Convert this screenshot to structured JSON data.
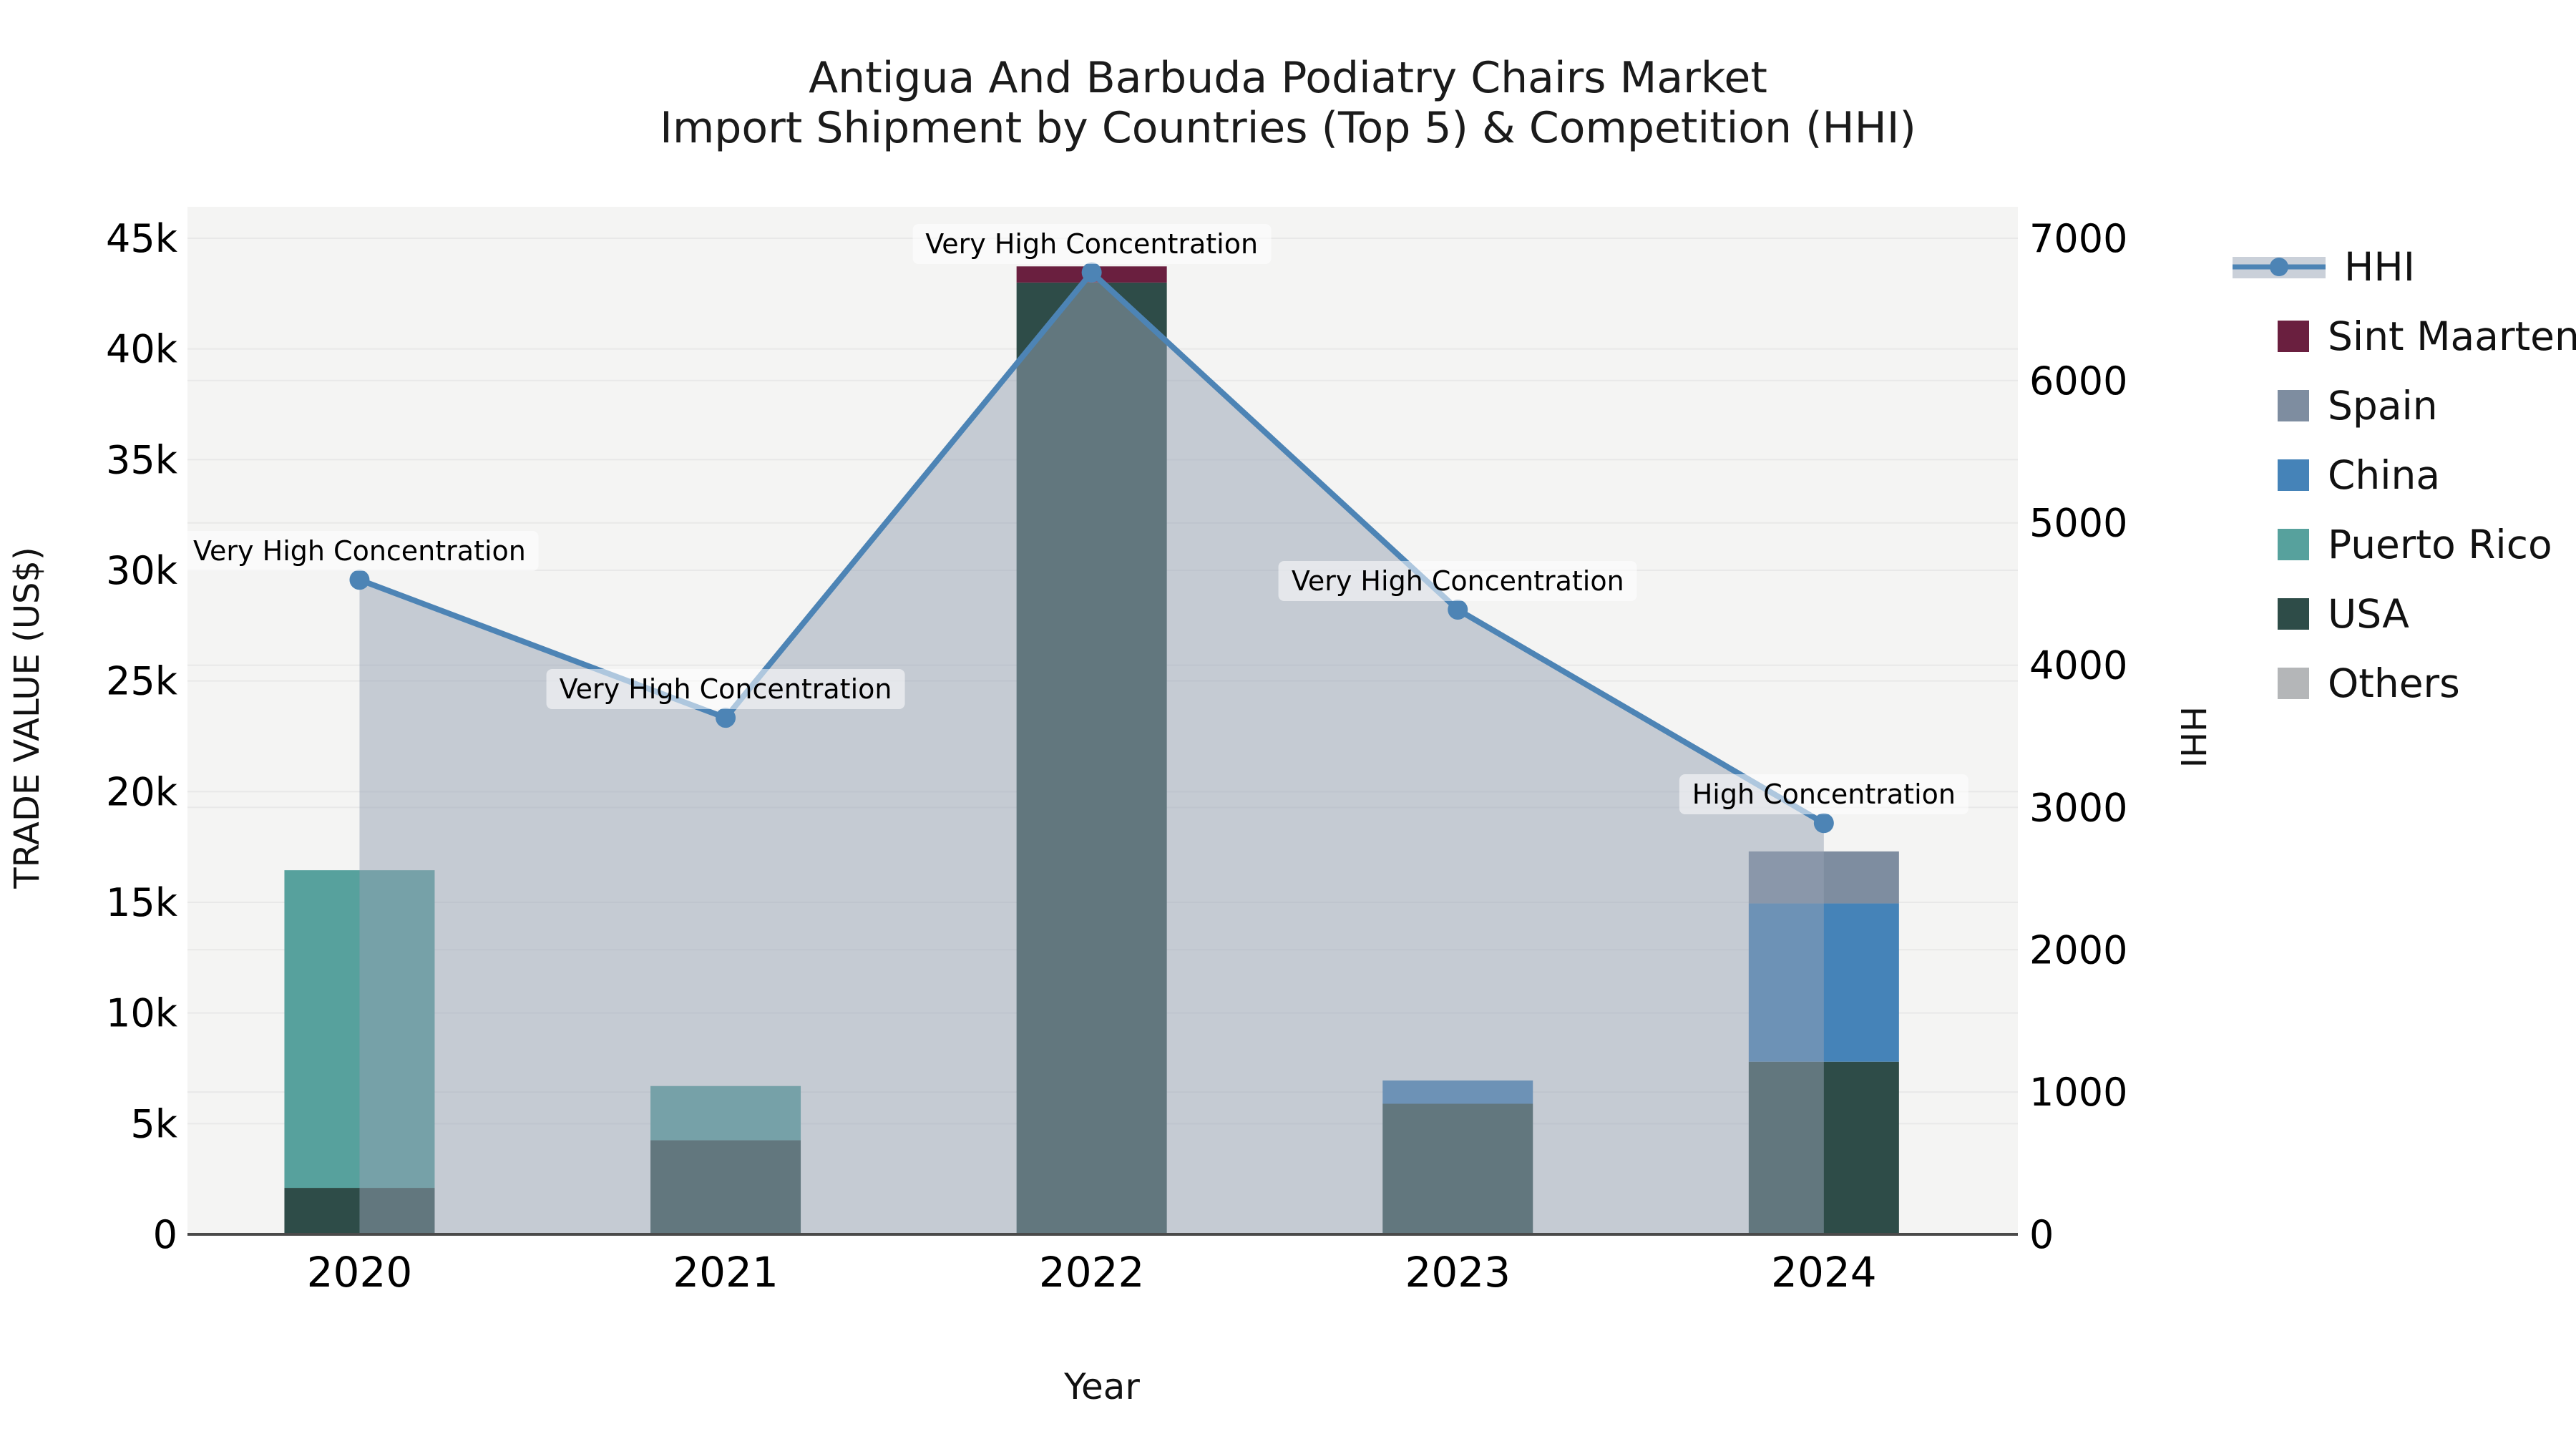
{
  "title": {
    "line1": "Antigua And Barbuda Podiatry Chairs Market",
    "line2": "Import Shipment by Countries (Top 5) & Competition (HHI)"
  },
  "axes": {
    "left": {
      "label": "TRADE VALUE (US$)",
      "tick_labels": [
        "0",
        "5k",
        "10k",
        "15k",
        "20k",
        "25k",
        "30k",
        "35k",
        "40k",
        "45k"
      ],
      "tick_values": [
        0,
        5000,
        10000,
        15000,
        20000,
        25000,
        30000,
        35000,
        40000,
        45000
      ]
    },
    "right": {
      "label": "HHI",
      "tick_labels": [
        "0",
        "1000",
        "2000",
        "3000",
        "4000",
        "5000",
        "6000",
        "7000"
      ],
      "tick_values": [
        0,
        1000,
        2000,
        3000,
        4000,
        5000,
        6000,
        7000
      ]
    },
    "x": {
      "label": "Year",
      "categories": [
        "2020",
        "2021",
        "2022",
        "2023",
        "2024"
      ]
    }
  },
  "legend": [
    {
      "label": "HHI",
      "type": "line",
      "series": "HHI"
    },
    {
      "label": "Sint Maarten",
      "type": "square",
      "series": "Sint Maarten"
    },
    {
      "label": "Spain",
      "type": "square",
      "series": "Spain"
    },
    {
      "label": "China",
      "type": "square",
      "series": "China"
    },
    {
      "label": "Puerto Rico",
      "type": "square",
      "series": "Puerto Rico"
    },
    {
      "label": "USA",
      "type": "square",
      "series": "USA"
    },
    {
      "label": "Others",
      "type": "square",
      "series": "Others"
    }
  ],
  "chart_data": {
    "type": "combo-stacked-bar-line",
    "categories": [
      "2020",
      "2021",
      "2022",
      "2023",
      "2024"
    ],
    "bar_value_unit": "US$",
    "series": [
      {
        "name": "USA",
        "type": "bar",
        "axis": "left",
        "color": "#2e4c48",
        "values": [
          2100,
          4250,
          43000,
          5900,
          7800
        ]
      },
      {
        "name": "Puerto Rico",
        "type": "bar",
        "axis": "left",
        "color": "#57a19d",
        "values": [
          14350,
          2450,
          0,
          0,
          0
        ]
      },
      {
        "name": "China",
        "type": "bar",
        "axis": "left",
        "color": "#4583b8",
        "values": [
          0,
          0,
          0,
          1050,
          7150
        ]
      },
      {
        "name": "Spain",
        "type": "bar",
        "axis": "left",
        "color": "#7e8da0",
        "values": [
          0,
          0,
          0,
          0,
          2350
        ]
      },
      {
        "name": "Sint Maarten",
        "type": "bar",
        "axis": "left",
        "color": "#6a1f3f",
        "values": [
          0,
          0,
          730,
          0,
          0
        ]
      },
      {
        "name": "Others",
        "type": "bar",
        "axis": "left",
        "color": "#b4b6b8",
        "values": [
          0,
          0,
          0,
          0,
          0
        ]
      },
      {
        "name": "HHI",
        "type": "line-area",
        "axis": "right",
        "color": "#4d84b5",
        "area_fill": "rgba(150,162,180,0.5)",
        "values": [
          4600,
          3630,
          6760,
          4390,
          2890
        ]
      }
    ],
    "annotations": [
      {
        "category": "2020",
        "text": "Very High Concentration"
      },
      {
        "category": "2021",
        "text": "Very High Concentration"
      },
      {
        "category": "2022",
        "text": "Very High Concentration"
      },
      {
        "category": "2023",
        "text": "Very High Concentration"
      },
      {
        "category": "2024",
        "text": "High Concentration"
      }
    ],
    "axis_ranges": {
      "left": [
        0,
        45000
      ],
      "right": [
        0,
        7000
      ]
    },
    "layout": {
      "grid": true,
      "legend_position": "right"
    },
    "colors": {
      "plot_background": "#f4f4f3",
      "gridline": "#e8e8e8",
      "axis_line": "#4a4a4a",
      "hhi_line": "#4d84b5",
      "area_fill": "rgba(150,162,180,0.5)",
      "text": "#000000"
    }
  }
}
